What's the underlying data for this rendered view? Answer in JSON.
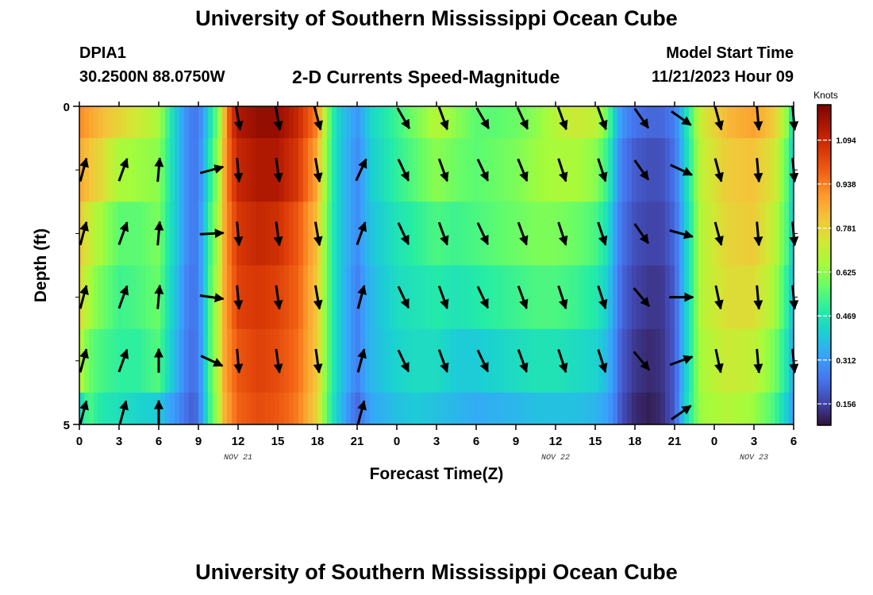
{
  "header": {
    "title": "University of Southern Mississippi Ocean Cube",
    "station_id": "DPIA1",
    "coords": "30.2500N  88.0750W",
    "subtitle": "2-D Currents Speed-Magnitude",
    "model_start_label": "Model Start Time",
    "model_start_value": "11/21/2023 Hour 09"
  },
  "footer": {
    "title": "University of Southern Mississippi Ocean Cube"
  },
  "chart_data": {
    "type": "heatmap",
    "title": "2-D Currents Speed-Magnitude",
    "xlabel": "Forecast Time(Z)",
    "ylabel": "Depth (ft)",
    "x_hours": [
      0,
      54
    ],
    "y_range": [
      0,
      5
    ],
    "y_tick_labels": [
      {
        "depth": 0,
        "label": "0"
      },
      {
        "depth": 5,
        "label": "5"
      }
    ],
    "y_minor_ticks": [
      1,
      2,
      3,
      4
    ],
    "x_tick_labels": [
      "0",
      "3",
      "6",
      "9",
      "12",
      "15",
      "18",
      "21",
      "0",
      "3",
      "6",
      "9",
      "12",
      "15",
      "18",
      "21",
      "0",
      "3",
      "6"
    ],
    "date_labels": [
      {
        "hour": 12,
        "label": "NOV 21"
      },
      {
        "hour": 36,
        "label": "NOV 22"
      },
      {
        "hour": 51,
        "label": "NOV 23"
      }
    ],
    "colorbar": {
      "unit": "Knots",
      "range": [
        0.08,
        1.22
      ],
      "tick_values": [
        0.156,
        0.312,
        0.469,
        0.625,
        0.781,
        0.938,
        1.094
      ],
      "tick_labels": [
        "0.156",
        "0.312",
        "0.469",
        "0.625",
        "0.781",
        "0.938",
        "1.094"
      ],
      "colors": [
        "#30123b",
        "#4145ab",
        "#4675ed",
        "#39a2fc",
        "#1bcfd4",
        "#24eca6",
        "#61fc6c",
        "#a4fc3b",
        "#d1e834",
        "#f3c63a",
        "#fe9b2d",
        "#f36315",
        "#d93806",
        "#b11901",
        "#7a0402"
      ]
    },
    "speed_profile": {
      "hours": [
        0,
        0.7,
        1.5,
        3,
        4.5,
        6,
        6.7,
        7.3,
        8,
        8.7,
        9.3,
        10,
        10.7,
        11,
        11.5,
        12,
        13.5,
        15,
        16.5,
        18,
        18.7,
        19.5,
        21,
        21.5,
        22,
        24,
        25.5,
        27,
        28.5,
        30,
        31.5,
        33,
        34.5,
        36,
        37.5,
        39,
        40,
        40.5,
        41,
        42,
        43,
        44,
        45,
        45.5,
        46,
        46.5,
        47,
        49,
        51,
        52.5,
        53.5,
        54
      ],
      "depths": [
        0,
        1,
        2,
        3,
        4,
        5
      ],
      "speeds": [
        [
          0.92,
          0.87,
          0.82,
          0.78,
          0.7,
          0.4
        ],
        [
          0.88,
          0.82,
          0.72,
          0.66,
          0.58,
          0.55
        ],
        [
          0.84,
          0.78,
          0.66,
          0.6,
          0.54,
          0.48
        ],
        [
          0.78,
          0.66,
          0.56,
          0.52,
          0.5,
          0.45
        ],
        [
          0.72,
          0.64,
          0.56,
          0.54,
          0.5,
          0.42
        ],
        [
          0.66,
          0.62,
          0.6,
          0.58,
          0.55,
          0.4
        ],
        [
          0.52,
          0.5,
          0.48,
          0.46,
          0.44,
          0.34
        ],
        [
          0.4,
          0.4,
          0.4,
          0.38,
          0.36,
          0.3
        ],
        [
          0.3,
          0.3,
          0.3,
          0.28,
          0.27,
          0.24
        ],
        [
          0.24,
          0.24,
          0.24,
          0.23,
          0.22,
          0.2
        ],
        [
          0.3,
          0.32,
          0.34,
          0.34,
          0.34,
          0.33
        ],
        [
          0.48,
          0.52,
          0.56,
          0.58,
          0.58,
          0.56
        ],
        [
          0.66,
          0.7,
          0.72,
          0.74,
          0.74,
          0.72
        ],
        [
          0.86,
          0.88,
          0.88,
          0.88,
          0.88,
          0.86
        ],
        [
          1.06,
          1.02,
          0.98,
          0.96,
          0.94,
          0.92
        ],
        [
          1.14,
          1.1,
          1.06,
          1.04,
          1.0,
          0.98
        ],
        [
          1.18,
          1.14,
          1.1,
          1.06,
          1.04,
          1.02
        ],
        [
          1.18,
          1.14,
          1.08,
          1.04,
          1.02,
          1.0
        ],
        [
          1.1,
          1.06,
          1.0,
          0.98,
          0.96,
          0.94
        ],
        [
          0.92,
          0.86,
          0.82,
          0.8,
          0.8,
          0.78
        ],
        [
          0.62,
          0.6,
          0.58,
          0.58,
          0.58,
          0.56
        ],
        [
          0.42,
          0.42,
          0.42,
          0.42,
          0.42,
          0.4
        ],
        [
          0.3,
          0.28,
          0.28,
          0.26,
          0.26,
          0.22
        ],
        [
          0.36,
          0.34,
          0.34,
          0.32,
          0.32,
          0.28
        ],
        [
          0.42,
          0.4,
          0.38,
          0.36,
          0.36,
          0.33
        ],
        [
          0.52,
          0.5,
          0.46,
          0.44,
          0.42,
          0.38
        ],
        [
          0.6,
          0.56,
          0.5,
          0.46,
          0.44,
          0.4
        ],
        [
          0.68,
          0.62,
          0.54,
          0.48,
          0.44,
          0.38
        ],
        [
          0.62,
          0.58,
          0.52,
          0.46,
          0.4,
          0.36
        ],
        [
          0.56,
          0.56,
          0.54,
          0.48,
          0.4,
          0.34
        ],
        [
          0.56,
          0.58,
          0.56,
          0.5,
          0.42,
          0.35
        ],
        [
          0.58,
          0.6,
          0.58,
          0.52,
          0.44,
          0.36
        ],
        [
          0.62,
          0.64,
          0.6,
          0.54,
          0.46,
          0.38
        ],
        [
          0.68,
          0.66,
          0.6,
          0.54,
          0.46,
          0.38
        ],
        [
          0.72,
          0.66,
          0.58,
          0.52,
          0.44,
          0.38
        ],
        [
          0.7,
          0.62,
          0.54,
          0.48,
          0.42,
          0.36
        ],
        [
          0.56,
          0.5,
          0.44,
          0.4,
          0.36,
          0.32
        ],
        [
          0.4,
          0.36,
          0.32,
          0.3,
          0.28,
          0.26
        ],
        [
          0.3,
          0.26,
          0.24,
          0.22,
          0.2,
          0.18
        ],
        [
          0.24,
          0.2,
          0.18,
          0.16,
          0.14,
          0.12
        ],
        [
          0.22,
          0.18,
          0.16,
          0.14,
          0.12,
          0.1
        ],
        [
          0.22,
          0.18,
          0.16,
          0.14,
          0.13,
          0.12
        ],
        [
          0.26,
          0.24,
          0.22,
          0.2,
          0.2,
          0.2
        ],
        [
          0.36,
          0.34,
          0.32,
          0.32,
          0.32,
          0.34
        ],
        [
          0.48,
          0.46,
          0.44,
          0.44,
          0.44,
          0.46
        ],
        [
          0.6,
          0.58,
          0.56,
          0.56,
          0.56,
          0.56
        ],
        [
          0.72,
          0.7,
          0.68,
          0.68,
          0.66,
          0.64
        ],
        [
          0.84,
          0.8,
          0.78,
          0.76,
          0.72,
          0.68
        ],
        [
          0.88,
          0.82,
          0.8,
          0.76,
          0.7,
          0.64
        ],
        [
          0.8,
          0.74,
          0.7,
          0.66,
          0.6,
          0.54
        ],
        [
          0.62,
          0.56,
          0.54,
          0.5,
          0.46,
          0.4
        ],
        [
          0.4,
          0.38,
          0.36,
          0.34,
          0.32,
          0.3
        ]
      ]
    },
    "vector_columns": [
      {
        "hour": 0.3,
        "angles_deg": [
          null,
          15,
          15,
          15,
          15,
          15
        ]
      },
      {
        "hour": 3.3,
        "angles_deg": [
          null,
          20,
          20,
          20,
          20,
          15
        ]
      },
      {
        "hour": 6.0,
        "angles_deg": [
          null,
          5,
          5,
          5,
          0,
          0
        ]
      },
      {
        "hour": 10.0,
        "angles_deg": [
          null,
          75,
          87,
          98,
          115,
          null
        ]
      },
      {
        "hour": 12.0,
        "angles_deg": [
          170,
          175,
          175,
          175,
          175,
          null
        ]
      },
      {
        "hour": 15.0,
        "angles_deg": [
          170,
          172,
          172,
          172,
          172,
          null
        ]
      },
      {
        "hour": 18.0,
        "angles_deg": [
          165,
          170,
          170,
          170,
          172,
          null
        ]
      },
      {
        "hour": 21.3,
        "angles_deg": [
          null,
          25,
          20,
          15,
          15,
          15
        ]
      },
      {
        "hour": 24.5,
        "angles_deg": [
          150,
          155,
          155,
          155,
          155,
          null
        ]
      },
      {
        "hour": 27.5,
        "angles_deg": [
          160,
          160,
          160,
          160,
          160,
          null
        ]
      },
      {
        "hour": 30.5,
        "angles_deg": [
          150,
          155,
          155,
          155,
          155,
          null
        ]
      },
      {
        "hour": 33.5,
        "angles_deg": [
          155,
          158,
          160,
          160,
          160,
          null
        ]
      },
      {
        "hour": 36.5,
        "angles_deg": [
          160,
          162,
          162,
          162,
          162,
          null
        ]
      },
      {
        "hour": 39.5,
        "angles_deg": [
          160,
          162,
          162,
          162,
          162,
          null
        ]
      },
      {
        "hour": 42.5,
        "angles_deg": [
          145,
          145,
          145,
          140,
          140,
          null
        ]
      },
      {
        "hour": 45.5,
        "angles_deg": [
          125,
          115,
          105,
          90,
          70,
          55
        ]
      },
      {
        "hour": 48.3,
        "angles_deg": [
          165,
          165,
          165,
          168,
          168,
          null
        ]
      },
      {
        "hour": 51.3,
        "angles_deg": [
          175,
          175,
          175,
          175,
          175,
          null
        ]
      },
      {
        "hour": 54.0,
        "angles_deg": [
          175,
          175,
          175,
          175,
          175,
          null
        ]
      }
    ]
  }
}
